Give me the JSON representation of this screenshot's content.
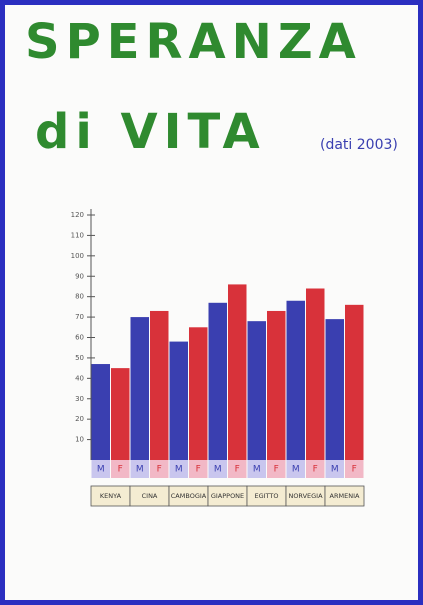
{
  "chart_data": {
    "type": "bar",
    "title": [
      "SPERANZA",
      "di VITA"
    ],
    "subtitle": "(dati 2003)",
    "categories": [
      "KENYA",
      "CINA",
      "CAMBOGIA",
      "GIAPPONE",
      "EGITTO",
      "NORVEGIA",
      "ARMENIA"
    ],
    "series": [
      {
        "name": "M",
        "color": "#3a3fb0",
        "values": [
          47,
          70,
          58,
          77,
          68,
          78,
          69
        ]
      },
      {
        "name": "F",
        "color": "#d8323a",
        "values": [
          45,
          73,
          65,
          86,
          73,
          84,
          76
        ]
      }
    ],
    "ylim": [
      0,
      120
    ],
    "yticks": [
      10,
      20,
      30,
      40,
      50,
      60,
      70,
      80,
      90,
      100,
      110,
      120
    ]
  }
}
